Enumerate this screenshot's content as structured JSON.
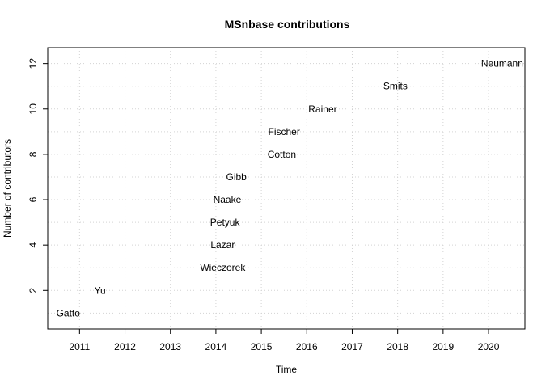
{
  "chart_data": {
    "type": "scatter",
    "title": "MSnbase contributions",
    "xlabel": "Time",
    "ylabel": "Number of contributors",
    "xlim": [
      2010.3,
      2020.8
    ],
    "ylim": [
      0.3,
      12.7
    ],
    "x_ticks": [
      2011,
      2012,
      2013,
      2014,
      2015,
      2016,
      2017,
      2018,
      2019,
      2020
    ],
    "y_ticks": [
      2,
      4,
      6,
      8,
      10,
      12
    ],
    "grid": true,
    "points": [
      {
        "x": 2010.75,
        "y": 1,
        "label": "Gatto"
      },
      {
        "x": 2011.45,
        "y": 2,
        "label": "Yu"
      },
      {
        "x": 2014.15,
        "y": 3,
        "label": "Wieczorek"
      },
      {
        "x": 2014.15,
        "y": 4,
        "label": "Lazar"
      },
      {
        "x": 2014.2,
        "y": 5,
        "label": "Petyuk"
      },
      {
        "x": 2014.25,
        "y": 6,
        "label": "Naake"
      },
      {
        "x": 2014.45,
        "y": 7,
        "label": "Gibb"
      },
      {
        "x": 2015.45,
        "y": 8,
        "label": "Cotton"
      },
      {
        "x": 2015.5,
        "y": 9,
        "label": "Fischer"
      },
      {
        "x": 2016.35,
        "y": 10,
        "label": "Rainer"
      },
      {
        "x": 2017.95,
        "y": 11,
        "label": "Smits"
      },
      {
        "x": 2020.3,
        "y": 12,
        "label": "Neumann"
      }
    ]
  }
}
